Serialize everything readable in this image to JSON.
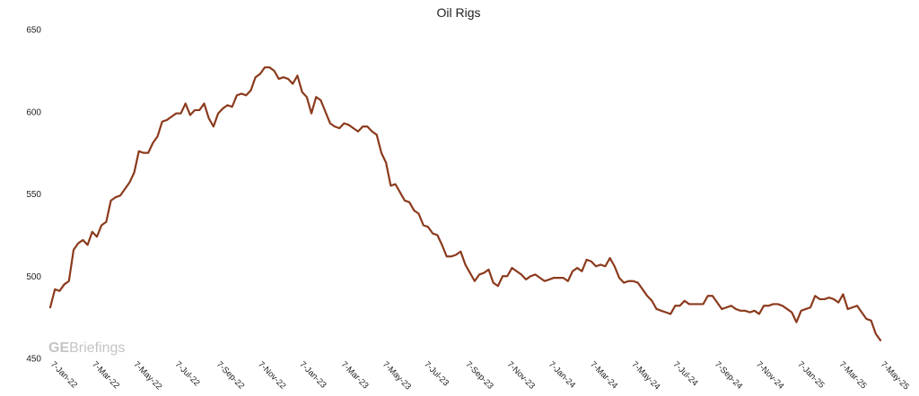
{
  "chart_data": {
    "type": "line",
    "title": "Oil Rigs",
    "xlabel": "",
    "ylabel": "",
    "ylim": [
      450,
      650
    ],
    "yticks": [
      650,
      600,
      550,
      500,
      450
    ],
    "grid": false,
    "xticks": [
      "7-Jan-22",
      "7-Mar-22",
      "7-May-22",
      "7-Jul-22",
      "7-Sep-22",
      "7-Nov-22",
      "7-Jan-23",
      "7-Mar-23",
      "7-May-23",
      "7-Jul-23",
      "7-Sep-23",
      "7-Nov-23",
      "7-Jan-24",
      "7-Mar-24",
      "7-May-24",
      "7-Jul-24",
      "7-Sep-24",
      "7-Nov-24",
      "7-Jan-25",
      "7-Mar-25",
      "7-May-25"
    ],
    "color": "#8b3a1c",
    "series": [
      {
        "x_start": "7-Jan-22",
        "x_step": "weekly",
        "values": [
          481,
          492,
          491,
          495,
          497,
          516,
          520,
          522,
          519,
          527,
          524,
          531,
          533,
          546,
          548,
          549,
          553,
          557,
          563,
          576,
          575,
          575,
          581,
          585,
          594,
          595,
          597,
          599,
          599,
          605,
          598,
          601,
          601,
          605,
          596,
          591,
          599,
          602,
          604,
          603,
          610,
          611,
          610,
          613,
          621,
          623,
          627,
          627,
          625,
          620,
          621,
          620,
          617,
          622,
          612,
          609,
          599,
          609,
          607,
          600,
          593,
          591,
          590,
          593,
          592,
          590,
          588,
          591,
          591,
          588,
          586,
          575,
          569,
          555,
          556,
          551,
          546,
          545,
          540,
          538,
          531,
          530,
          526,
          525,
          519,
          512,
          512,
          513,
          515,
          507,
          502,
          497,
          501,
          502,
          504,
          496,
          494,
          500,
          500,
          505,
          503,
          501,
          498,
          500,
          501,
          499,
          497,
          498,
          499,
          499,
          499,
          497,
          503,
          505,
          503,
          510,
          509,
          506,
          507,
          506,
          511,
          506,
          499,
          496,
          497,
          497,
          496,
          492,
          488,
          485,
          480,
          479,
          478,
          477,
          482,
          482,
          485,
          483,
          483,
          483,
          483,
          488,
          488,
          484,
          480,
          481,
          482,
          480,
          479,
          479,
          478,
          479,
          477,
          482,
          482,
          483,
          483,
          482,
          480,
          478,
          472,
          479,
          480,
          481,
          488,
          486,
          486,
          487,
          486,
          484,
          489,
          480,
          481,
          482,
          478,
          474,
          473,
          465,
          461
        ]
      }
    ],
    "watermark": {
      "bold_part": "GE",
      "rest": "Briefings"
    }
  }
}
